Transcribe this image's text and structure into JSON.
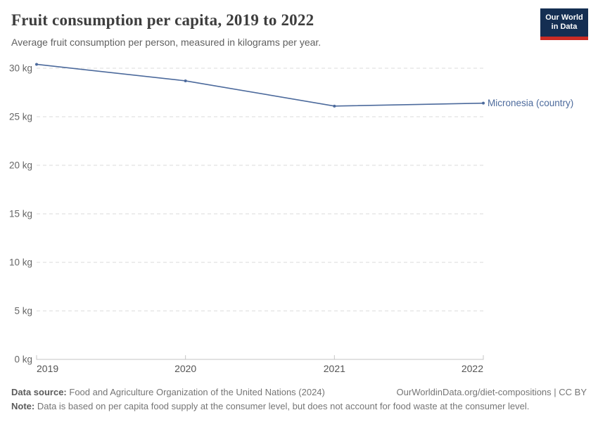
{
  "header": {
    "title": "Fruit consumption per capita, 2019 to 2022",
    "subtitle": "Average fruit consumption per person, measured in kilograms per year.",
    "logo": {
      "line1": "Our World",
      "line2": "in Data"
    }
  },
  "chart_data": {
    "type": "line",
    "title": "Fruit consumption per capita, 2019 to 2022",
    "subtitle": "Average fruit consumption per person, measured in kilograms per year.",
    "x": [
      2019,
      2020,
      2021,
      2022
    ],
    "series": [
      {
        "name": "Micronesia (country)",
        "values": [
          30.4,
          28.7,
          26.1,
          26.4
        ],
        "color": "#4C6A9C"
      }
    ],
    "xlabel": "",
    "ylabel": "kilograms per year",
    "ylim": [
      0,
      30
    ],
    "yticks": [
      0,
      5,
      10,
      15,
      20,
      25,
      30
    ],
    "ytick_suffix": " kg",
    "grid": "horizontal-dashed",
    "legend": "end-of-line-label",
    "marker": "dot"
  },
  "colors": {
    "series_blue": "#4C6A9C",
    "gridline": "#dbdbdb",
    "axis": "#c4c4c4",
    "logo_navy": "#142E52",
    "logo_red": "#CB2B24"
  },
  "footer": {
    "data_source_label": "Data source:",
    "data_source": "Food and Agriculture Organization of the United Nations (2024)",
    "attribution": "OurWorldinData.org/diet-compositions | CC BY",
    "note_label": "Note:",
    "note": "Data is based on per capita food supply at the consumer level, but does not account for food waste at the consumer level."
  }
}
